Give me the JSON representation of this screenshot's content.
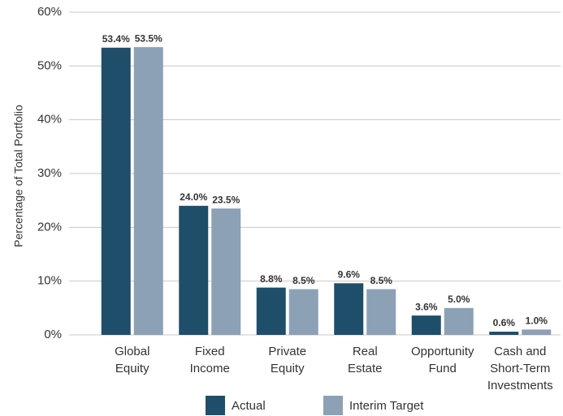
{
  "chart_data": {
    "type": "bar",
    "y_label": "Percentage of Total Portfolio",
    "categories": [
      "Global\nEquity",
      "Fixed\nIncome",
      "Private\nEquity",
      "Real\nEstate",
      "Opportunity\nFund",
      "Cash and\nShort-Term\nInvestments"
    ],
    "series": [
      {
        "name": "Actual",
        "color": "#1f4e6b",
        "values": [
          53.4,
          24.0,
          8.8,
          9.6,
          3.6,
          0.6
        ],
        "value_labels": [
          "53.4%",
          "24.0%",
          "8.8%",
          "9.6%",
          "3.6%",
          "0.6%"
        ]
      },
      {
        "name": "Interim Target",
        "color": "#8ca1b5",
        "values": [
          53.5,
          23.5,
          8.5,
          8.5,
          5.0,
          1.0
        ],
        "value_labels": [
          "53.5%",
          "23.5%",
          "8.5%",
          "8.5%",
          "5.0%",
          "1.0%"
        ]
      }
    ],
    "ylim": [
      0,
      60
    ],
    "yticks": [
      {
        "value": 0,
        "label": "0%"
      },
      {
        "value": 10,
        "label": "10%"
      },
      {
        "value": 20,
        "label": "20%"
      },
      {
        "value": 30,
        "label": "30%"
      },
      {
        "value": 40,
        "label": "40%"
      },
      {
        "value": 50,
        "label": "50%"
      },
      {
        "value": 60,
        "label": "60%"
      }
    ],
    "grid": true
  }
}
